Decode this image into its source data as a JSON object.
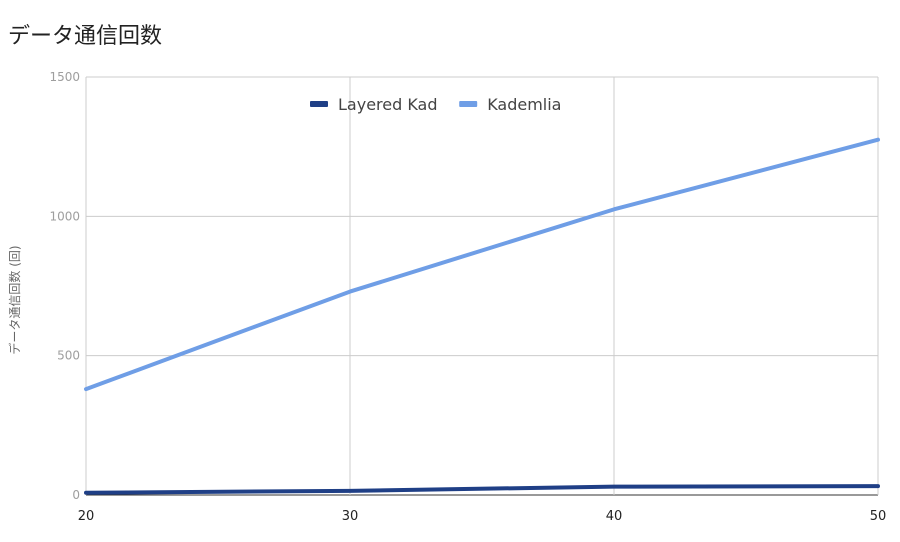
{
  "chart_data": {
    "type": "line",
    "title": "データ通信回数",
    "xlabel": "",
    "ylabel": "データ通信回数 (回)",
    "x": [
      20,
      30,
      40,
      50
    ],
    "x_ticks": [
      "20",
      "30",
      "40",
      "50"
    ],
    "xlim": [
      20,
      50
    ],
    "ylim": [
      0,
      1500
    ],
    "y_ticks": [
      "0",
      "500",
      "1000",
      "1500"
    ],
    "grid": true,
    "legend_position": "top-center",
    "series": [
      {
        "name": "Layered Kad",
        "color": "#1f3f86",
        "values": [
          8,
          15,
          30,
          32
        ]
      },
      {
        "name": "Kademlia",
        "color": "#6f9ee6",
        "values": [
          380,
          730,
          1025,
          1275
        ]
      }
    ]
  }
}
